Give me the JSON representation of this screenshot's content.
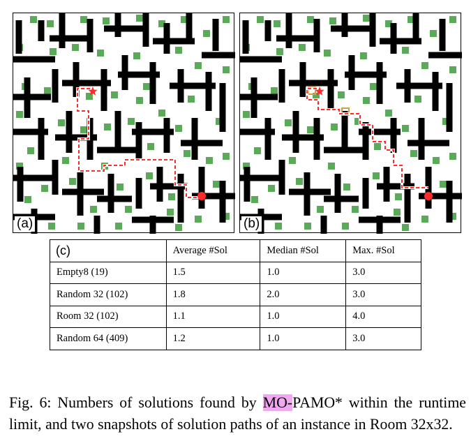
{
  "figure": {
    "panel_a_label": "(a)",
    "panel_b_label": "(b)",
    "colors": {
      "obstacle": "#000000",
      "goal_cell": "#5aaa5a",
      "path": "#ff2a2a",
      "visited_box": "#c9a24a"
    }
  },
  "table": {
    "corner_label": "(c)",
    "headers": [
      "Average #Sol",
      "Median #Sol",
      "Max. #Sol"
    ],
    "rows": [
      [
        "Empty8 (19)",
        "1.5",
        "1.0",
        "3.0"
      ],
      [
        "Random 32 (102)",
        "1.8",
        "2.0",
        "3.0"
      ],
      [
        "Room 32 (102)",
        "1.1",
        "1.0",
        "4.0"
      ],
      [
        "Random 64 (409)",
        "1.2",
        "1.0",
        "3.0"
      ]
    ]
  },
  "caption": {
    "prefix": "Fig. 6: Numbers of solutions found by ",
    "highlight": "MO-",
    "suffix": "PAMO* within the runtime limit, and two snapshots of solution paths of an instance in Room 32x32."
  }
}
